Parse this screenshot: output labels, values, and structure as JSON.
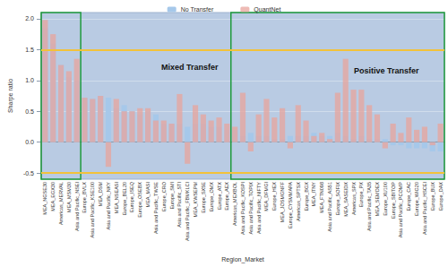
{
  "chart_data": {
    "type": "bar",
    "x_label": "Region_Market",
    "y_label": "Sharpe ratio",
    "categories": [
      "MEA_NGSE30",
      "MEA_EGX30",
      "Americas_MERVAL",
      "MEA_MSM30",
      "Asia and Pacific_NSEI",
      "Europe_BVLX",
      "Asia and Pacific_KSE100",
      "MEA_DSM",
      "Asia and Pacific_NKY",
      "MEA_NSEASI",
      "Europe_BEL20",
      "Europe_ISEQ",
      "Europe_OSEBX",
      "MEA_MASI",
      "Asia and Pacific_TWSE",
      "Europe_CRO",
      "Europe_SMI",
      "Asia and Pacific_STI",
      "Asia and Pacific_FBMKLCI",
      "MEA_KWSEPM",
      "Europe_SX5E",
      "Europe_OMX",
      "Europe_ATX",
      "Europe_AEX",
      "Americas_MEXBOL",
      "Asia and Pacific_KOSPI",
      "Asia and Pacific_TOPIX",
      "Asia and Pacific_NIFTY",
      "MEA_DFMGI",
      "Europe_HEX",
      "MEA_JOSMGNFF",
      "Europe_CYSMMAPA",
      "Americas_SPTSX",
      "Europe_BGX",
      "MEA_ITNY",
      "MEA_FTN098",
      "Asia and Pacific_AS51",
      "Europe_SOFIX",
      "MEA_SASEIDX",
      "Americas_SPX",
      "Europe_PX",
      "Asia and Pacific_TA35",
      "MEA_SEMDEX",
      "Europe_XU100",
      "Europe_SBITOP",
      "Asia and Pacific_PCOMP",
      "Europe_CAC",
      "Europe_WIG20",
      "Asia and Pacific_HSCEI",
      "Europe_BUX",
      "Europe_DAX"
    ],
    "series": [
      {
        "name": "No Transfer",
        "color": "#a6c8ea",
        "values": [
          1.85,
          1.6,
          1.25,
          1.05,
          1.0,
          0.72,
          0.7,
          0.75,
          0.72,
          0.55,
          0.6,
          0.5,
          0.45,
          0.5,
          0.45,
          0.3,
          0.3,
          0.3,
          0.25,
          0.3,
          0.3,
          0.25,
          0.25,
          0.2,
          0.2,
          0.1,
          0.15,
          0.1,
          0.1,
          0.05,
          0.05,
          0.1,
          0.1,
          0.1,
          0.15,
          0.1,
          0.1,
          0.15,
          0.1,
          0.05,
          0.1,
          0.05,
          0.05,
          0.05,
          -0.05,
          -0.05,
          -0.1,
          -0.1,
          -0.1,
          -0.15,
          -0.15
        ]
      },
      {
        "name": "QuantNet",
        "color": "#e8a49c",
        "values": [
          1.98,
          1.75,
          1.25,
          1.15,
          1.35,
          0.72,
          0.7,
          0.75,
          -0.4,
          0.7,
          0.5,
          0.5,
          0.55,
          0.55,
          0.35,
          0.35,
          0.3,
          0.78,
          -0.35,
          0.6,
          0.45,
          0.35,
          0.4,
          0.3,
          0.25,
          0.8,
          -0.15,
          0.45,
          0.7,
          0.4,
          0.55,
          -0.1,
          0.6,
          0.35,
          0.1,
          0.15,
          0.05,
          0.8,
          1.35,
          0.85,
          0.85,
          0.6,
          0.45,
          -0.1,
          0.3,
          0.15,
          0.4,
          0.2,
          0.25,
          -0.05,
          0.3
        ]
      }
    ],
    "ylim": [
      -0.6,
      2.1
    ],
    "yticks": [
      -0.5,
      {
        "value": 0,
        "label": "0.0"
      },
      0.5,
      {
        "value": 1,
        "label": "1.0"
      },
      1.5,
      {
        "value": 2,
        "label": "2.0"
      }
    ],
    "grid": true,
    "legend": "top",
    "hlines": [
      1.5,
      -0.5
    ],
    "boxes": [
      {
        "from": "MEA_NGSE30",
        "to": "Asia and Pacific_NSEI"
      },
      {
        "from": "Americas_MEXBOL",
        "to": "Europe_DAX"
      }
    ],
    "annotations": [
      "Mixed Transfer",
      "Positive Transfer"
    ]
  }
}
